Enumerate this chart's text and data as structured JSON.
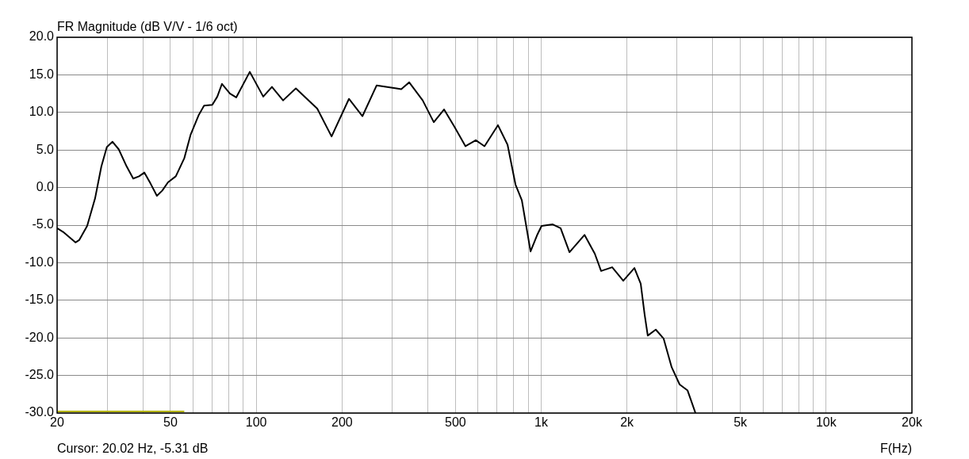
{
  "chart_data": {
    "type": "line",
    "title": "FR Magnitude (dB V/V - 1/6 oct)",
    "xlabel": "F(Hz)",
    "annotations": [
      "Cursor: 20.02 Hz, -5.31 dB"
    ],
    "log": "x",
    "grid": true,
    "legend": false,
    "marker": "none",
    "line_style": "solid",
    "xlim": [
      20,
      20000
    ],
    "ylim": [
      -30,
      20
    ],
    "xticks": [
      20,
      {
        "value": 30,
        "label": null
      },
      {
        "value": 40,
        "label": null
      },
      50,
      {
        "value": 60,
        "label": null
      },
      {
        "value": 70,
        "label": null
      },
      {
        "value": 80,
        "label": null
      },
      {
        "value": 90,
        "label": null
      },
      100,
      200,
      {
        "value": 300,
        "label": null
      },
      {
        "value": 400,
        "label": null
      },
      500,
      {
        "value": 600,
        "label": null
      },
      {
        "value": 700,
        "label": null
      },
      {
        "value": 800,
        "label": null
      },
      {
        "value": 900,
        "label": null
      },
      {
        "value": 1000,
        "label": "1k"
      },
      {
        "value": 2000,
        "label": "2k"
      },
      {
        "value": 3000,
        "label": null
      },
      {
        "value": 4000,
        "label": null
      },
      {
        "value": 5000,
        "label": "5k"
      },
      {
        "value": 6000,
        "label": null
      },
      {
        "value": 7000,
        "label": null
      },
      {
        "value": 8000,
        "label": null
      },
      {
        "value": 9000,
        "label": null
      },
      {
        "value": 10000,
        "label": "10k"
      },
      {
        "value": 20000,
        "label": "20k"
      }
    ],
    "yticks": [
      {
        "value": -30,
        "label": "-30.0"
      },
      {
        "value": -25,
        "label": "-25.0"
      },
      {
        "value": -20,
        "label": "-20.0"
      },
      {
        "value": -15,
        "label": "-15.0"
      },
      {
        "value": -10,
        "label": "-10.0"
      },
      {
        "value": -5,
        "label": "-5.0"
      },
      {
        "value": 0,
        "label": "0.0"
      },
      {
        "value": 5,
        "label": "5.0"
      },
      {
        "value": 10,
        "label": "10.0"
      },
      {
        "value": 15,
        "label": "15.0"
      },
      {
        "value": 20,
        "label": "20.0"
      }
    ],
    "series": [
      {
        "color": "#000000",
        "x": [
          20,
          21,
          23.2,
          23.9,
          25.5,
          27.2,
          28.6,
          29.9,
          31.3,
          32.9,
          35.1,
          37,
          38.8,
          40.5,
          42.6,
          44.8,
          46.8,
          49,
          52.2,
          55.9,
          58.8,
          62.9,
          65.6,
          70.1,
          73,
          75.8,
          80.9,
          85.1,
          94.9,
          105.8,
          113.5,
          124.2,
          137.7,
          163.7,
          183.8,
          211.5,
          235.9,
          264.6,
          310.6,
          322.8,
          344.2,
          383.8,
          419.8,
          456.1,
          495.8,
          542.4,
          589.6,
          632.5,
          705,
          761.9,
          812.5,
          855.3,
          917.6,
          965.7,
          1003,
          1098,
          1170,
          1257,
          1419,
          1542,
          1623,
          1775,
          1941,
          2124,
          2235,
          2307,
          2366,
          2524,
          2690,
          2870,
          3061,
          3264,
          3479
        ],
        "values": [
          -5.4,
          -5.9,
          -7.3,
          -7,
          -5.1,
          -1.4,
          2.8,
          5.4,
          6.1,
          5.1,
          2.8,
          1.2,
          1.5,
          2,
          0.5,
          -1.1,
          -0.4,
          0.7,
          1.5,
          3.9,
          7,
          9.7,
          10.9,
          11,
          12.1,
          13.8,
          12.5,
          12,
          15.4,
          12.1,
          13.4,
          11.6,
          13.2,
          10.5,
          6.8,
          11.8,
          9.5,
          13.6,
          13.2,
          13.1,
          14,
          11.6,
          8.7,
          10.4,
          8.1,
          5.5,
          6.3,
          5.5,
          8.3,
          5.7,
          0.4,
          -1.7,
          -8.5,
          -6.4,
          -5.1,
          -4.9,
          -5.4,
          -8.6,
          -6.3,
          -8.8,
          -11.1,
          -10.6,
          -12.4,
          -10.7,
          -12.8,
          -16.9,
          -19.7,
          -18.9,
          -20.1,
          -23.9,
          -26.2,
          -27,
          -30
        ]
      },
      {
        "color": "#b4b400",
        "x": [
          20,
          55.9
        ],
        "values": [
          -29.8,
          -29.8
        ]
      }
    ]
  }
}
